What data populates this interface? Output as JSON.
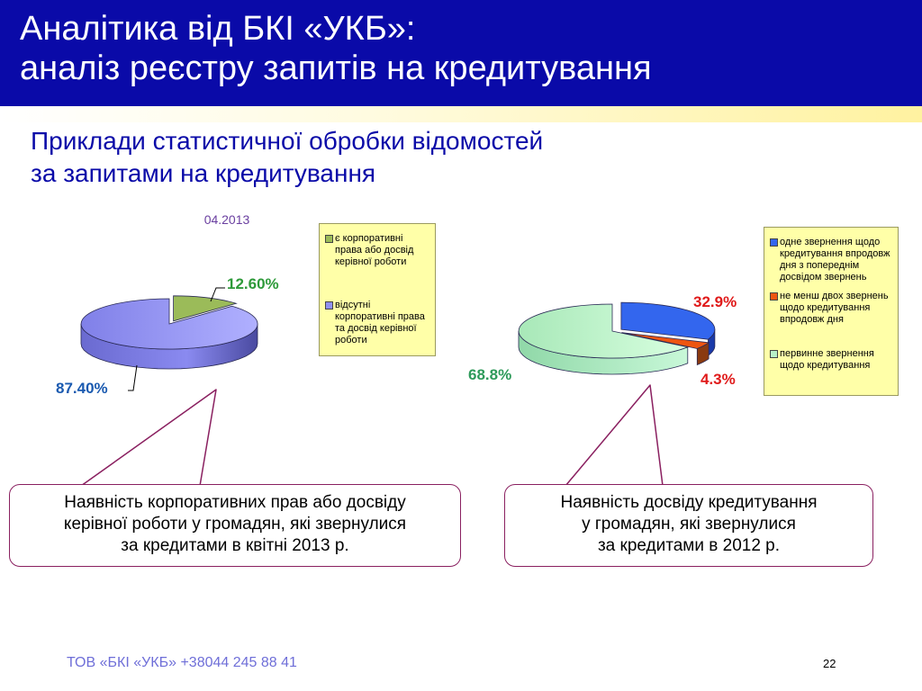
{
  "header": {
    "title_line1": "Аналітика від БКІ «УКБ»:",
    "title_line2": "аналіз реєстру запитів на кредитування"
  },
  "subtitle": {
    "line1": "Приклади статистичної обробки відомостей",
    "line2": "за запитами на кредитування"
  },
  "chart_data": [
    {
      "type": "pie",
      "title": "04.2013",
      "slices": [
        {
          "label": "є корпоративні права або досвід керівної роботи",
          "value": 12.6,
          "value_label": "12.60%",
          "color": "#9bbb59"
        },
        {
          "label": "відсутні корпоративні права та досвід керівної роботи",
          "value": 87.4,
          "value_label": "87.40%",
          "color": "#9090f0"
        }
      ],
      "legend_placement": "right"
    },
    {
      "type": "pie",
      "title": "",
      "slices": [
        {
          "label": "одне звернення щодо кредитування впродовж дня з попереднім досвідом звернень",
          "value": 32.9,
          "value_label": "32.9%",
          "color": "#3366ee"
        },
        {
          "label": "не менш двох звернень щодо кредитування впродовж дня",
          "value": 4.3,
          "value_label": "4.3%",
          "color": "#ee5511"
        },
        {
          "label": "первинне звернення щодо кредитування",
          "value": 68.8,
          "value_label": "68.8%",
          "color": "#b8f0c8"
        }
      ],
      "legend_placement": "right"
    }
  ],
  "legend1": {
    "items": [
      {
        "lines": [
          "є корпоративні",
          "права або досвід",
          "керівної роботи"
        ]
      },
      {
        "lines": [
          "відсутні",
          "корпоративні права",
          "та досвід керівної",
          "роботи"
        ]
      }
    ]
  },
  "legend2": {
    "items": [
      {
        "lines": [
          "одне звернення щодо",
          "кредитування впродовж",
          "дня з попереднім",
          "досвідом звернень"
        ]
      },
      {
        "lines": [
          "не менш двох звернень",
          "щодо кредитування",
          "впродовж дня"
        ]
      },
      {
        "lines": [
          "первинне звернення",
          "щодо кредитування"
        ]
      }
    ]
  },
  "callout1": {
    "line1": "Наявність корпоративних прав або досвіду",
    "line2": "керівної роботи у громадян, які звернулися",
    "line3": "за кредитами в квітні 2013 р."
  },
  "callout2": {
    "line1": "Наявність досвіду кредитування",
    "line2": "у громадян, які звернулися",
    "line3": "за кредитами в 2012 р."
  },
  "footer": {
    "text": "ТОВ «БКІ «УКБ» +38044 245 88 41",
    "page_number": "22"
  }
}
